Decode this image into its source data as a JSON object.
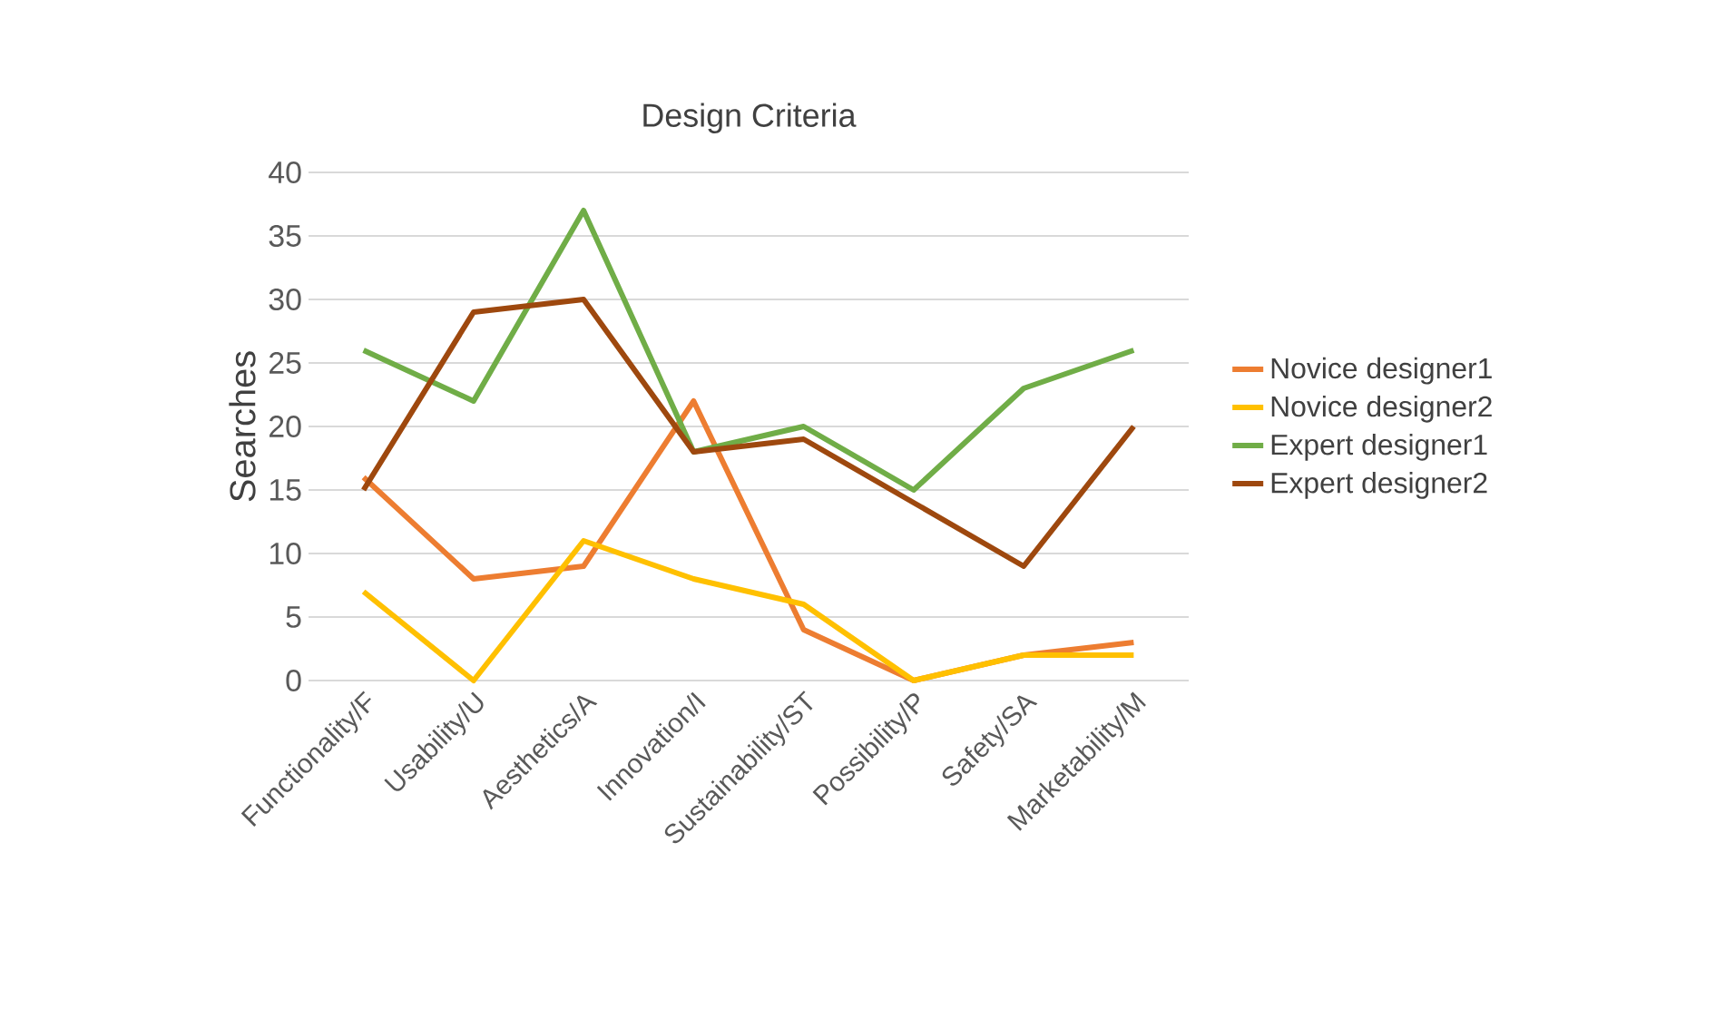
{
  "chart_data": {
    "type": "line",
    "title": "Design Criteria",
    "ylabel": "Searches",
    "categories": [
      "Functionality/F",
      "Usability/U",
      "Aesthetics/A",
      "Innovation/I",
      "Sustainability/ST",
      "Possibility/P",
      "Safety/SA",
      "Marketability/M"
    ],
    "series": [
      {
        "name": "Novice designer1",
        "color": "#ed7d31",
        "values": [
          16,
          8,
          9,
          22,
          4,
          0,
          2,
          3
        ]
      },
      {
        "name": "Novice designer2",
        "color": "#ffc000",
        "values": [
          7,
          0,
          11,
          8,
          6,
          0,
          2,
          2
        ]
      },
      {
        "name": "Expert designer1",
        "color": "#70ad47",
        "values": [
          26,
          22,
          37,
          18,
          20,
          15,
          23,
          26
        ]
      },
      {
        "name": "Expert designer2",
        "color": "#9e480e",
        "values": [
          15,
          29,
          30,
          18,
          19,
          14,
          9,
          20
        ]
      }
    ],
    "ylim": [
      0,
      40
    ],
    "yticks": [
      0,
      5,
      10,
      15,
      20,
      25,
      30,
      35,
      40
    ],
    "grid": "y",
    "legend": "right",
    "marker": "none",
    "line_style": "solid"
  }
}
